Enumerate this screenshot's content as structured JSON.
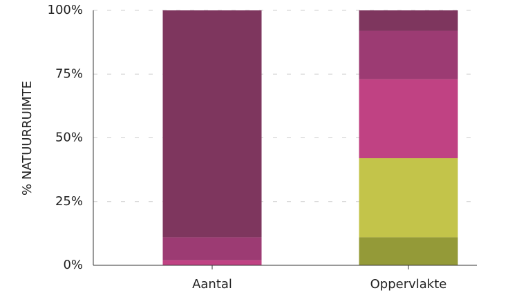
{
  "chart_data": {
    "type": "stacked_bar",
    "ylabel": "% NATUURRUIMTE",
    "categories": [
      "Aantal",
      "Oppervlakte"
    ],
    "series": [
      {
        "color": "#949a38",
        "values": [
          0,
          11
        ]
      },
      {
        "color": "#c3c44a",
        "values": [
          0,
          31
        ]
      },
      {
        "color": "#c04283",
        "values": [
          2,
          31
        ]
      },
      {
        "color": "#9c3b73",
        "values": [
          9,
          19
        ]
      },
      {
        "color": "#7e365e",
        "values": [
          89,
          8
        ]
      }
    ],
    "ylim": [
      0,
      100
    ],
    "yticks": [
      {
        "value": 0,
        "label": "0%"
      },
      {
        "value": 25,
        "label": "25%"
      },
      {
        "value": 50,
        "label": "50%"
      },
      {
        "value": 75,
        "label": "75%"
      },
      {
        "value": 100,
        "label": "100%"
      }
    ],
    "grid": true
  }
}
